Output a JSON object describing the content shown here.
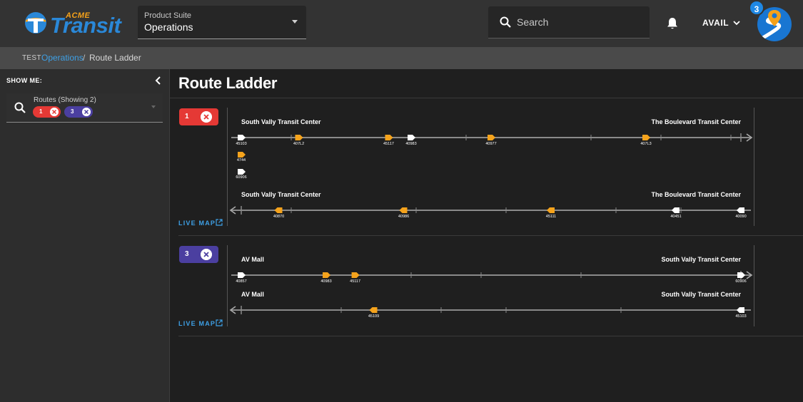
{
  "header": {
    "logo_acme": "ACME",
    "logo_transit": "Transit",
    "product_suite_label": "Product Suite",
    "product_suite_value": "Operations",
    "search_placeholder": "Search",
    "user_menu": "AVAIL",
    "notification_count": "3"
  },
  "breadcrumb": {
    "env": "TEST",
    "parent": "Operations",
    "separator": "/",
    "current": "Route Ladder"
  },
  "sidebar": {
    "show_me": "SHOW ME:",
    "routes_label": "Routes (Showing 2)",
    "chips": [
      {
        "label": "1",
        "color": "#e53935"
      },
      {
        "label": "3",
        "color": "#4b3fa0"
      }
    ]
  },
  "main": {
    "title": "Route Ladder",
    "live_map": "LIVE MAP",
    "routes": [
      {
        "route": "1",
        "color": "#e53935",
        "tracks": [
          {
            "direction": "outbound",
            "origin": "South Vally Transit Center",
            "destination": "The Boulevard Transit Center",
            "ticks": [
              0.1,
              0.45,
              0.7,
              0.84,
              0.98
            ],
            "vehicles": [
              {
                "id": "45103",
                "pos": 0.0,
                "color": "white"
              },
              {
                "id": "407L2",
                "pos": 0.115,
                "color": "orange"
              },
              {
                "id": "45117",
                "pos": 0.295,
                "color": "orange"
              },
              {
                "id": "40983",
                "pos": 0.34,
                "color": "white"
              },
              {
                "id": "40977",
                "pos": 0.5,
                "color": "orange"
              },
              {
                "id": "407L3",
                "pos": 0.81,
                "color": "orange"
              }
            ],
            "layover": [
              {
                "id": "4744",
                "color": "orange"
              },
              {
                "id": "60906",
                "color": "white"
              }
            ]
          },
          {
            "direction": "inbound",
            "origin": "South Vally Transit Center",
            "destination": "The Boulevard Transit Center",
            "ticks": [
              0.1,
              0.35,
              0.53,
              0.75,
              0.88
            ],
            "vehicles": [
              {
                "id": "40870",
                "pos": 0.075,
                "color": "orange"
              },
              {
                "id": "40986",
                "pos": 0.325,
                "color": "orange"
              },
              {
                "id": "45111",
                "pos": 0.62,
                "color": "orange"
              },
              {
                "id": "40451",
                "pos": 0.87,
                "color": "white"
              },
              {
                "id": "40090",
                "pos": 1.0,
                "color": "white"
              }
            ]
          }
        ]
      },
      {
        "route": "3",
        "color": "#4b3fa0",
        "tracks": [
          {
            "direction": "outbound",
            "origin": "AV Mall",
            "destination": "South Vally Transit Center",
            "ticks": [
              0.34,
              0.48,
              0.68
            ],
            "vehicles": [
              {
                "id": "40857",
                "pos": 0.0,
                "color": "white"
              },
              {
                "id": "40983",
                "pos": 0.17,
                "color": "orange"
              },
              {
                "id": "45117",
                "pos": 0.228,
                "color": "orange"
              },
              {
                "id": "60906",
                "pos": 1.0,
                "color": "white"
              }
            ]
          },
          {
            "direction": "inbound",
            "origin": "AV Mall",
            "destination": "South Vally Transit Center",
            "ticks": [
              0.2,
              0.4,
              0.53,
              0.76
            ],
            "vehicles": [
              {
                "id": "45109",
                "pos": 0.265,
                "color": "orange"
              },
              {
                "id": "45103",
                "pos": 1.0,
                "color": "white"
              }
            ]
          }
        ]
      }
    ]
  },
  "colors": {
    "orange": "#f5a31c",
    "white": "#ffffff",
    "link": "#3ea0e6"
  }
}
